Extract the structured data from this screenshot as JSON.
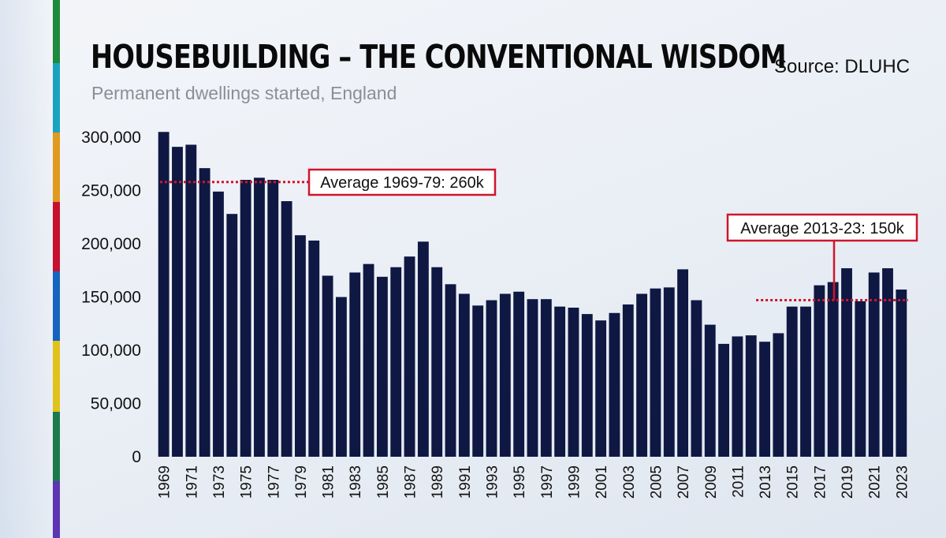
{
  "title": "HOUSEBUILDING – THE CONVENTIONAL WISDOM",
  "subtitle": "Permanent dwellings started, England",
  "source": "Source: DLUHC",
  "colors": {
    "bar": "#0f1842",
    "average_line": "#d0152b",
    "annotation_border": "#d0152b",
    "stripe": [
      "#1d8a3c",
      "#1aa3c0",
      "#e09a1e",
      "#c8102e",
      "#1565c0",
      "#e0c21a",
      "#1a7a4c",
      "#5d35b3"
    ]
  },
  "chart_data": {
    "type": "bar",
    "title": "HOUSEBUILDING – THE CONVENTIONAL WISDOM",
    "subtitle": "Permanent dwellings started, England",
    "xlabel": "",
    "ylabel": "",
    "ylim": [
      0,
      300000
    ],
    "grid": false,
    "yticks": [
      0,
      50000,
      100000,
      150000,
      200000,
      250000,
      300000
    ],
    "ytick_labels": [
      "0",
      "50,000",
      "100,000",
      "150,000",
      "200,000",
      "250,000",
      "300,000"
    ],
    "categories": [
      "1969",
      "1970",
      "1971",
      "1972",
      "1973",
      "1974",
      "1975",
      "1976",
      "1977",
      "1978",
      "1979",
      "1980",
      "1981",
      "1982",
      "1983",
      "1984",
      "1985",
      "1986",
      "1987",
      "1988",
      "1989",
      "1990",
      "1991",
      "1992",
      "1993",
      "1994",
      "1995",
      "1996",
      "1997",
      "1998",
      "1999",
      "2000",
      "2001",
      "2002",
      "2003",
      "2004",
      "2005",
      "2006",
      "2007",
      "2008",
      "2009",
      "2010",
      "2011",
      "2012",
      "2013",
      "2014",
      "2015",
      "2016",
      "2017",
      "2018",
      "2019",
      "2020",
      "2021",
      "2022",
      "2023"
    ],
    "xtick_labels": [
      "1969",
      "1971",
      "1973",
      "1975",
      "1977",
      "1979",
      "1981",
      "1983",
      "1985",
      "1987",
      "1989",
      "1991",
      "1993",
      "1995",
      "1997",
      "1999",
      "2001",
      "2003",
      "2005",
      "2007",
      "2009",
      "2011",
      "2013",
      "2015",
      "2017",
      "2019",
      "2021",
      "2023"
    ],
    "values": [
      305000,
      291000,
      293000,
      271000,
      249000,
      228000,
      260000,
      262000,
      260000,
      240000,
      208000,
      203000,
      170000,
      150000,
      173000,
      181000,
      169000,
      178000,
      188000,
      202000,
      178000,
      162000,
      153000,
      142000,
      147000,
      153000,
      155000,
      148000,
      148000,
      141000,
      140000,
      134000,
      128000,
      135000,
      143000,
      153000,
      158000,
      159000,
      176000,
      147000,
      124000,
      106000,
      113000,
      114000,
      108000,
      116000,
      141000,
      141000,
      161000,
      164000,
      177000,
      146000,
      173000,
      177000,
      157000
    ],
    "annotations": [
      {
        "label": "Average 1969-79: 260k",
        "value": 258000,
        "span": [
          "1969",
          "1979"
        ]
      },
      {
        "label": "Average 2013-23: 150k",
        "value": 147000,
        "span": [
          "2013",
          "2023"
        ]
      }
    ]
  }
}
